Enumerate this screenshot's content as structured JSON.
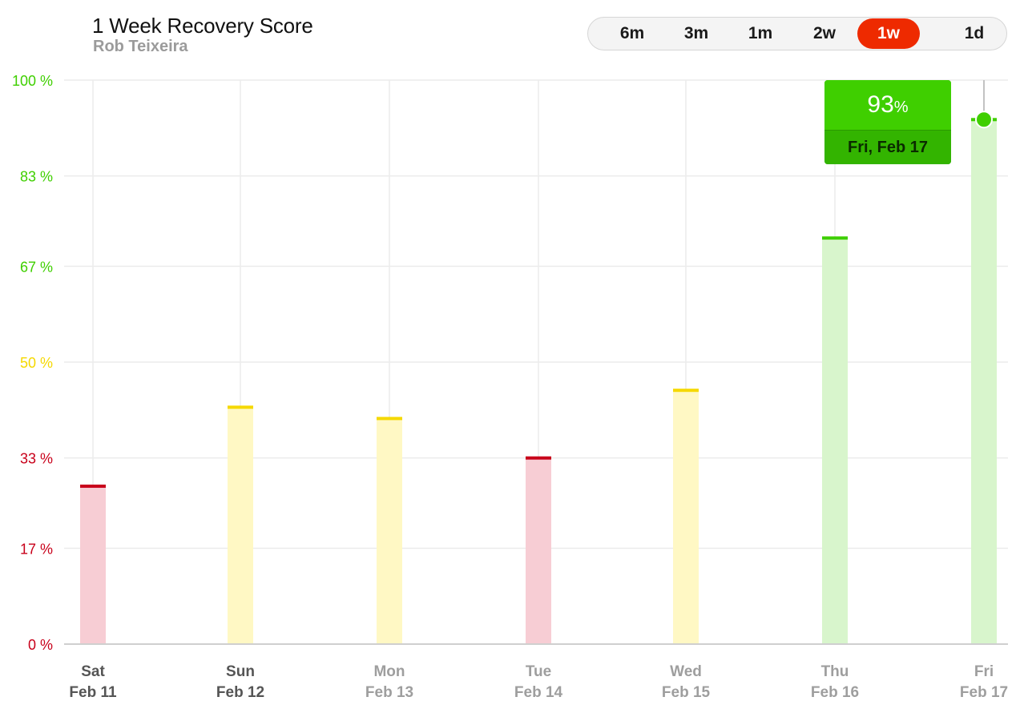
{
  "header": {
    "title": "1 Week Recovery Score",
    "subtitle": "Rob Teixeira"
  },
  "range_selector": {
    "options": [
      "6m",
      "3m",
      "1m",
      "2w",
      "1w",
      "1d"
    ],
    "selected": "1w"
  },
  "tooltip": {
    "value": "93",
    "unit": "%",
    "date": "Fri, Feb 17"
  },
  "colors": {
    "red": "#c8001a",
    "red_fill": "#f7cdd4",
    "yellow": "#f5d800",
    "yellow_fill": "#fff8c4",
    "green": "#3fcf00",
    "green_fill": "#d8f5cc",
    "active_range": "#ee2a00"
  },
  "chart_data": {
    "type": "bar",
    "title": "1 Week Recovery Score",
    "xlabel": "",
    "ylabel": "",
    "ylim": [
      0,
      100
    ],
    "grid": true,
    "y_ticks": [
      {
        "value": 0,
        "label": "0",
        "zone": "red"
      },
      {
        "value": 17,
        "label": "17",
        "zone": "red"
      },
      {
        "value": 33,
        "label": "33",
        "zone": "red"
      },
      {
        "value": 50,
        "label": "50",
        "zone": "yellow"
      },
      {
        "value": 67,
        "label": "67",
        "zone": "green"
      },
      {
        "value": 83,
        "label": "83",
        "zone": "green"
      },
      {
        "value": 100,
        "label": "100",
        "zone": "green"
      }
    ],
    "y_unit": "%",
    "categories": [
      {
        "day": "Sat",
        "date": "Feb 11"
      },
      {
        "day": "Sun",
        "date": "Feb 12"
      },
      {
        "day": "Mon",
        "date": "Feb 13"
      },
      {
        "day": "Tue",
        "date": "Feb 14"
      },
      {
        "day": "Wed",
        "date": "Feb 15"
      },
      {
        "day": "Thu",
        "date": "Feb 16"
      },
      {
        "day": "Fri",
        "date": "Feb 17"
      }
    ],
    "values": [
      28,
      42,
      40,
      33,
      45,
      72,
      93
    ],
    "zones": [
      "red",
      "yellow",
      "yellow",
      "red",
      "yellow",
      "green",
      "green"
    ],
    "highlighted_index": 6
  }
}
